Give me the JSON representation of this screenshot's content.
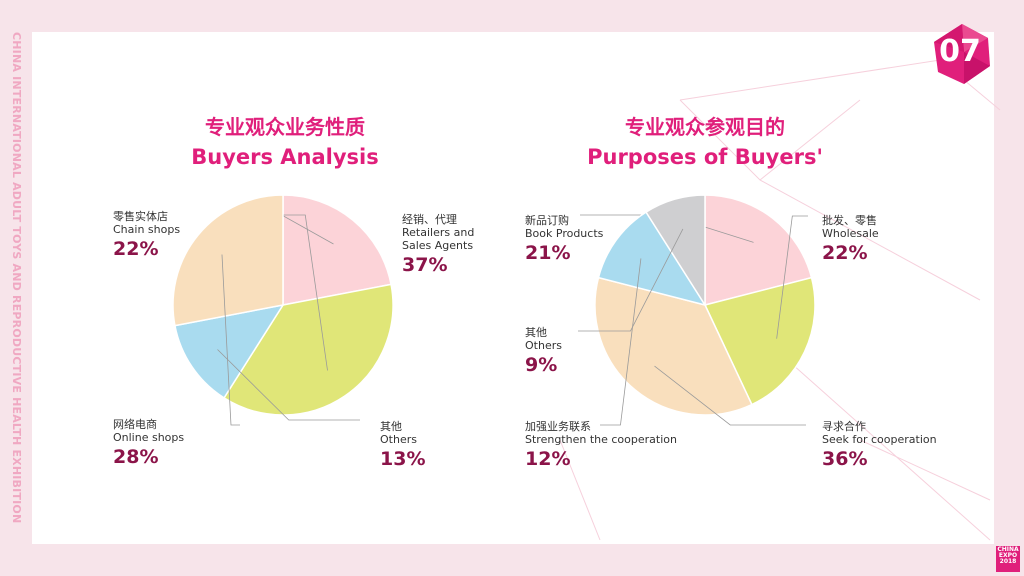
{
  "side_text": "CHINA INTERNATIONAL ADULT TOYS AND REPRODUCTIVE HEALTH EXHIBITION",
  "page_number": "07",
  "logo": {
    "line1": "CHINA",
    "line2": "EXPO",
    "line3": "2018"
  },
  "colors": {
    "title": "#e01f7b",
    "percent": "#8b1449",
    "pink": "#fcd3d8",
    "yellow": "#e0e678",
    "blue": "#a9dbef",
    "peach": "#f9dfbd",
    "grey": "#cfcfd1"
  },
  "chart_data": [
    {
      "type": "pie",
      "title_cn": "专业观众业务性质",
      "title_en": "Buyers Analysis",
      "slices": [
        {
          "label_cn": "零售实体店",
          "label_en": "Chain shops",
          "value": 22,
          "pct": "22%",
          "color": "pink"
        },
        {
          "label_cn": "经销、代理",
          "label_en": "Retailers and Sales Agents",
          "value": 37,
          "pct": "37%",
          "color": "yellow"
        },
        {
          "label_cn": "其他",
          "label_en": "Others",
          "value": 13,
          "pct": "13%",
          "color": "blue"
        },
        {
          "label_cn": "网络电商",
          "label_en": "Online shops",
          "value": 28,
          "pct": "28%",
          "color": "peach"
        }
      ]
    },
    {
      "type": "pie",
      "title_cn": "专业观众参观目的",
      "title_en": "Purposes of Buyers'",
      "slices": [
        {
          "label_cn": "新品订购",
          "label_en": "Book Products",
          "value": 21,
          "pct": "21%",
          "color": "pink"
        },
        {
          "label_cn": "批发、零售",
          "label_en": "Wholesale",
          "value": 22,
          "pct": "22%",
          "color": "yellow"
        },
        {
          "label_cn": "寻求合作",
          "label_en": "Seek for cooperation",
          "value": 36,
          "pct": "36%",
          "color": "peach"
        },
        {
          "label_cn": "加强业务联系",
          "label_en": "Strengthen the cooperation",
          "value": 12,
          "pct": "12%",
          "color": "blue"
        },
        {
          "label_cn": "其他",
          "label_en": "Others",
          "value": 9,
          "pct": "9%",
          "color": "grey"
        }
      ]
    }
  ]
}
